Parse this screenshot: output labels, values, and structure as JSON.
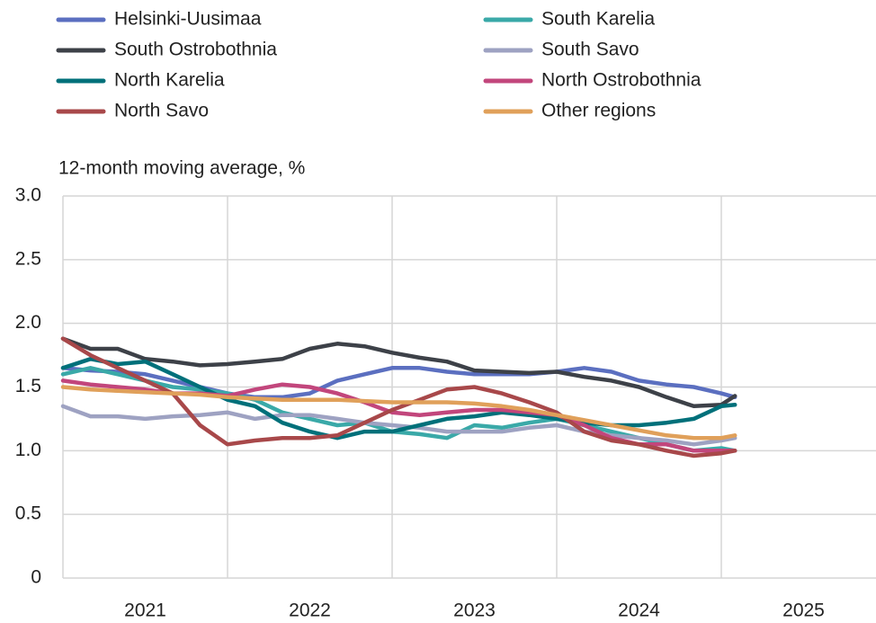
{
  "chart_data": {
    "type": "line",
    "y_label": "12-month moving average, %",
    "ylim": [
      0,
      3
    ],
    "yticks": [
      0,
      0.5,
      {
        "value": 1,
        "label": "1.0"
      },
      1.5,
      {
        "value": 2,
        "label": "2.0"
      },
      2.5,
      {
        "value": 3,
        "label": "3.0"
      }
    ],
    "xlim": [
      2021,
      2026
    ],
    "xgrid": [
      2021,
      2022,
      2023,
      2024,
      2025
    ],
    "xticks": [
      {
        "value": 2021.5,
        "label": "2021"
      },
      {
        "value": 2022.5,
        "label": "2022"
      },
      {
        "value": 2023.5,
        "label": "2023"
      },
      {
        "value": 2024.5,
        "label": "2024"
      },
      {
        "value": 2025.5,
        "label": "2025"
      }
    ],
    "grid": true,
    "legend": "top",
    "x": [
      2021,
      2021.167,
      2021.333,
      2021.5,
      2021.667,
      2021.833,
      2022,
      2022.167,
      2022.333,
      2022.5,
      2022.667,
      2022.833,
      2023,
      2023.167,
      2023.333,
      2023.5,
      2023.667,
      2023.833,
      2024,
      2024.167,
      2024.333,
      2024.5,
      2024.667,
      2024.833,
      2025,
      2025.083
    ],
    "series": [
      {
        "name": "Helsinki-Uusimaa",
        "color": "#5b6fc0",
        "values": [
          1.65,
          1.63,
          1.62,
          1.6,
          1.55,
          1.5,
          1.45,
          1.42,
          1.42,
          1.45,
          1.55,
          1.6,
          1.65,
          1.65,
          1.62,
          1.6,
          1.6,
          1.6,
          1.62,
          1.65,
          1.62,
          1.55,
          1.52,
          1.5,
          1.45,
          1.42
        ]
      },
      {
        "name": "South Karelia",
        "color": "#3aa9a8",
        "values": [
          1.6,
          1.65,
          1.6,
          1.55,
          1.5,
          1.48,
          1.45,
          1.4,
          1.3,
          1.25,
          1.2,
          1.22,
          1.15,
          1.13,
          1.1,
          1.2,
          1.18,
          1.22,
          1.25,
          1.2,
          1.15,
          1.1,
          1.05,
          1.0,
          1.02,
          1.0
        ]
      },
      {
        "name": "South Ostrobothnia",
        "color": "#3d4148",
        "values": [
          1.88,
          1.8,
          1.8,
          1.72,
          1.7,
          1.67,
          1.68,
          1.7,
          1.72,
          1.8,
          1.84,
          1.82,
          1.77,
          1.73,
          1.7,
          1.63,
          1.62,
          1.61,
          1.62,
          1.58,
          1.55,
          1.5,
          1.42,
          1.35,
          1.36,
          1.43
        ]
      },
      {
        "name": "South Savo",
        "color": "#9ea2c2",
        "values": [
          1.35,
          1.27,
          1.27,
          1.25,
          1.27,
          1.28,
          1.3,
          1.25,
          1.28,
          1.28,
          1.25,
          1.22,
          1.2,
          1.18,
          1.15,
          1.15,
          1.15,
          1.18,
          1.2,
          1.15,
          1.12,
          1.1,
          1.08,
          1.05,
          1.08,
          1.1
        ]
      },
      {
        "name": "North Karelia",
        "color": "#00707a",
        "values": [
          1.65,
          1.72,
          1.68,
          1.7,
          1.6,
          1.5,
          1.4,
          1.35,
          1.22,
          1.15,
          1.1,
          1.15,
          1.15,
          1.2,
          1.25,
          1.27,
          1.3,
          1.28,
          1.25,
          1.22,
          1.2,
          1.2,
          1.22,
          1.25,
          1.35,
          1.36
        ]
      },
      {
        "name": "North Ostrobothnia",
        "color": "#c2467c",
        "values": [
          1.55,
          1.52,
          1.5,
          1.48,
          1.45,
          1.45,
          1.43,
          1.48,
          1.52,
          1.5,
          1.45,
          1.38,
          1.3,
          1.28,
          1.3,
          1.32,
          1.32,
          1.3,
          1.28,
          1.2,
          1.1,
          1.05,
          1.05,
          1.0,
          1.0,
          1.0
        ]
      },
      {
        "name": "North Savo",
        "color": "#a8484a",
        "values": [
          1.88,
          1.75,
          1.65,
          1.55,
          1.45,
          1.2,
          1.05,
          1.08,
          1.1,
          1.1,
          1.12,
          1.22,
          1.32,
          1.4,
          1.48,
          1.5,
          1.45,
          1.38,
          1.3,
          1.15,
          1.08,
          1.05,
          1.0,
          0.96,
          0.98,
          1.0
        ]
      },
      {
        "name": "Other regions",
        "color": "#e0a05a",
        "values": [
          1.5,
          1.48,
          1.47,
          1.46,
          1.45,
          1.44,
          1.42,
          1.41,
          1.4,
          1.4,
          1.4,
          1.39,
          1.38,
          1.38,
          1.38,
          1.37,
          1.35,
          1.32,
          1.28,
          1.24,
          1.2,
          1.16,
          1.12,
          1.1,
          1.1,
          1.12
        ]
      }
    ]
  }
}
